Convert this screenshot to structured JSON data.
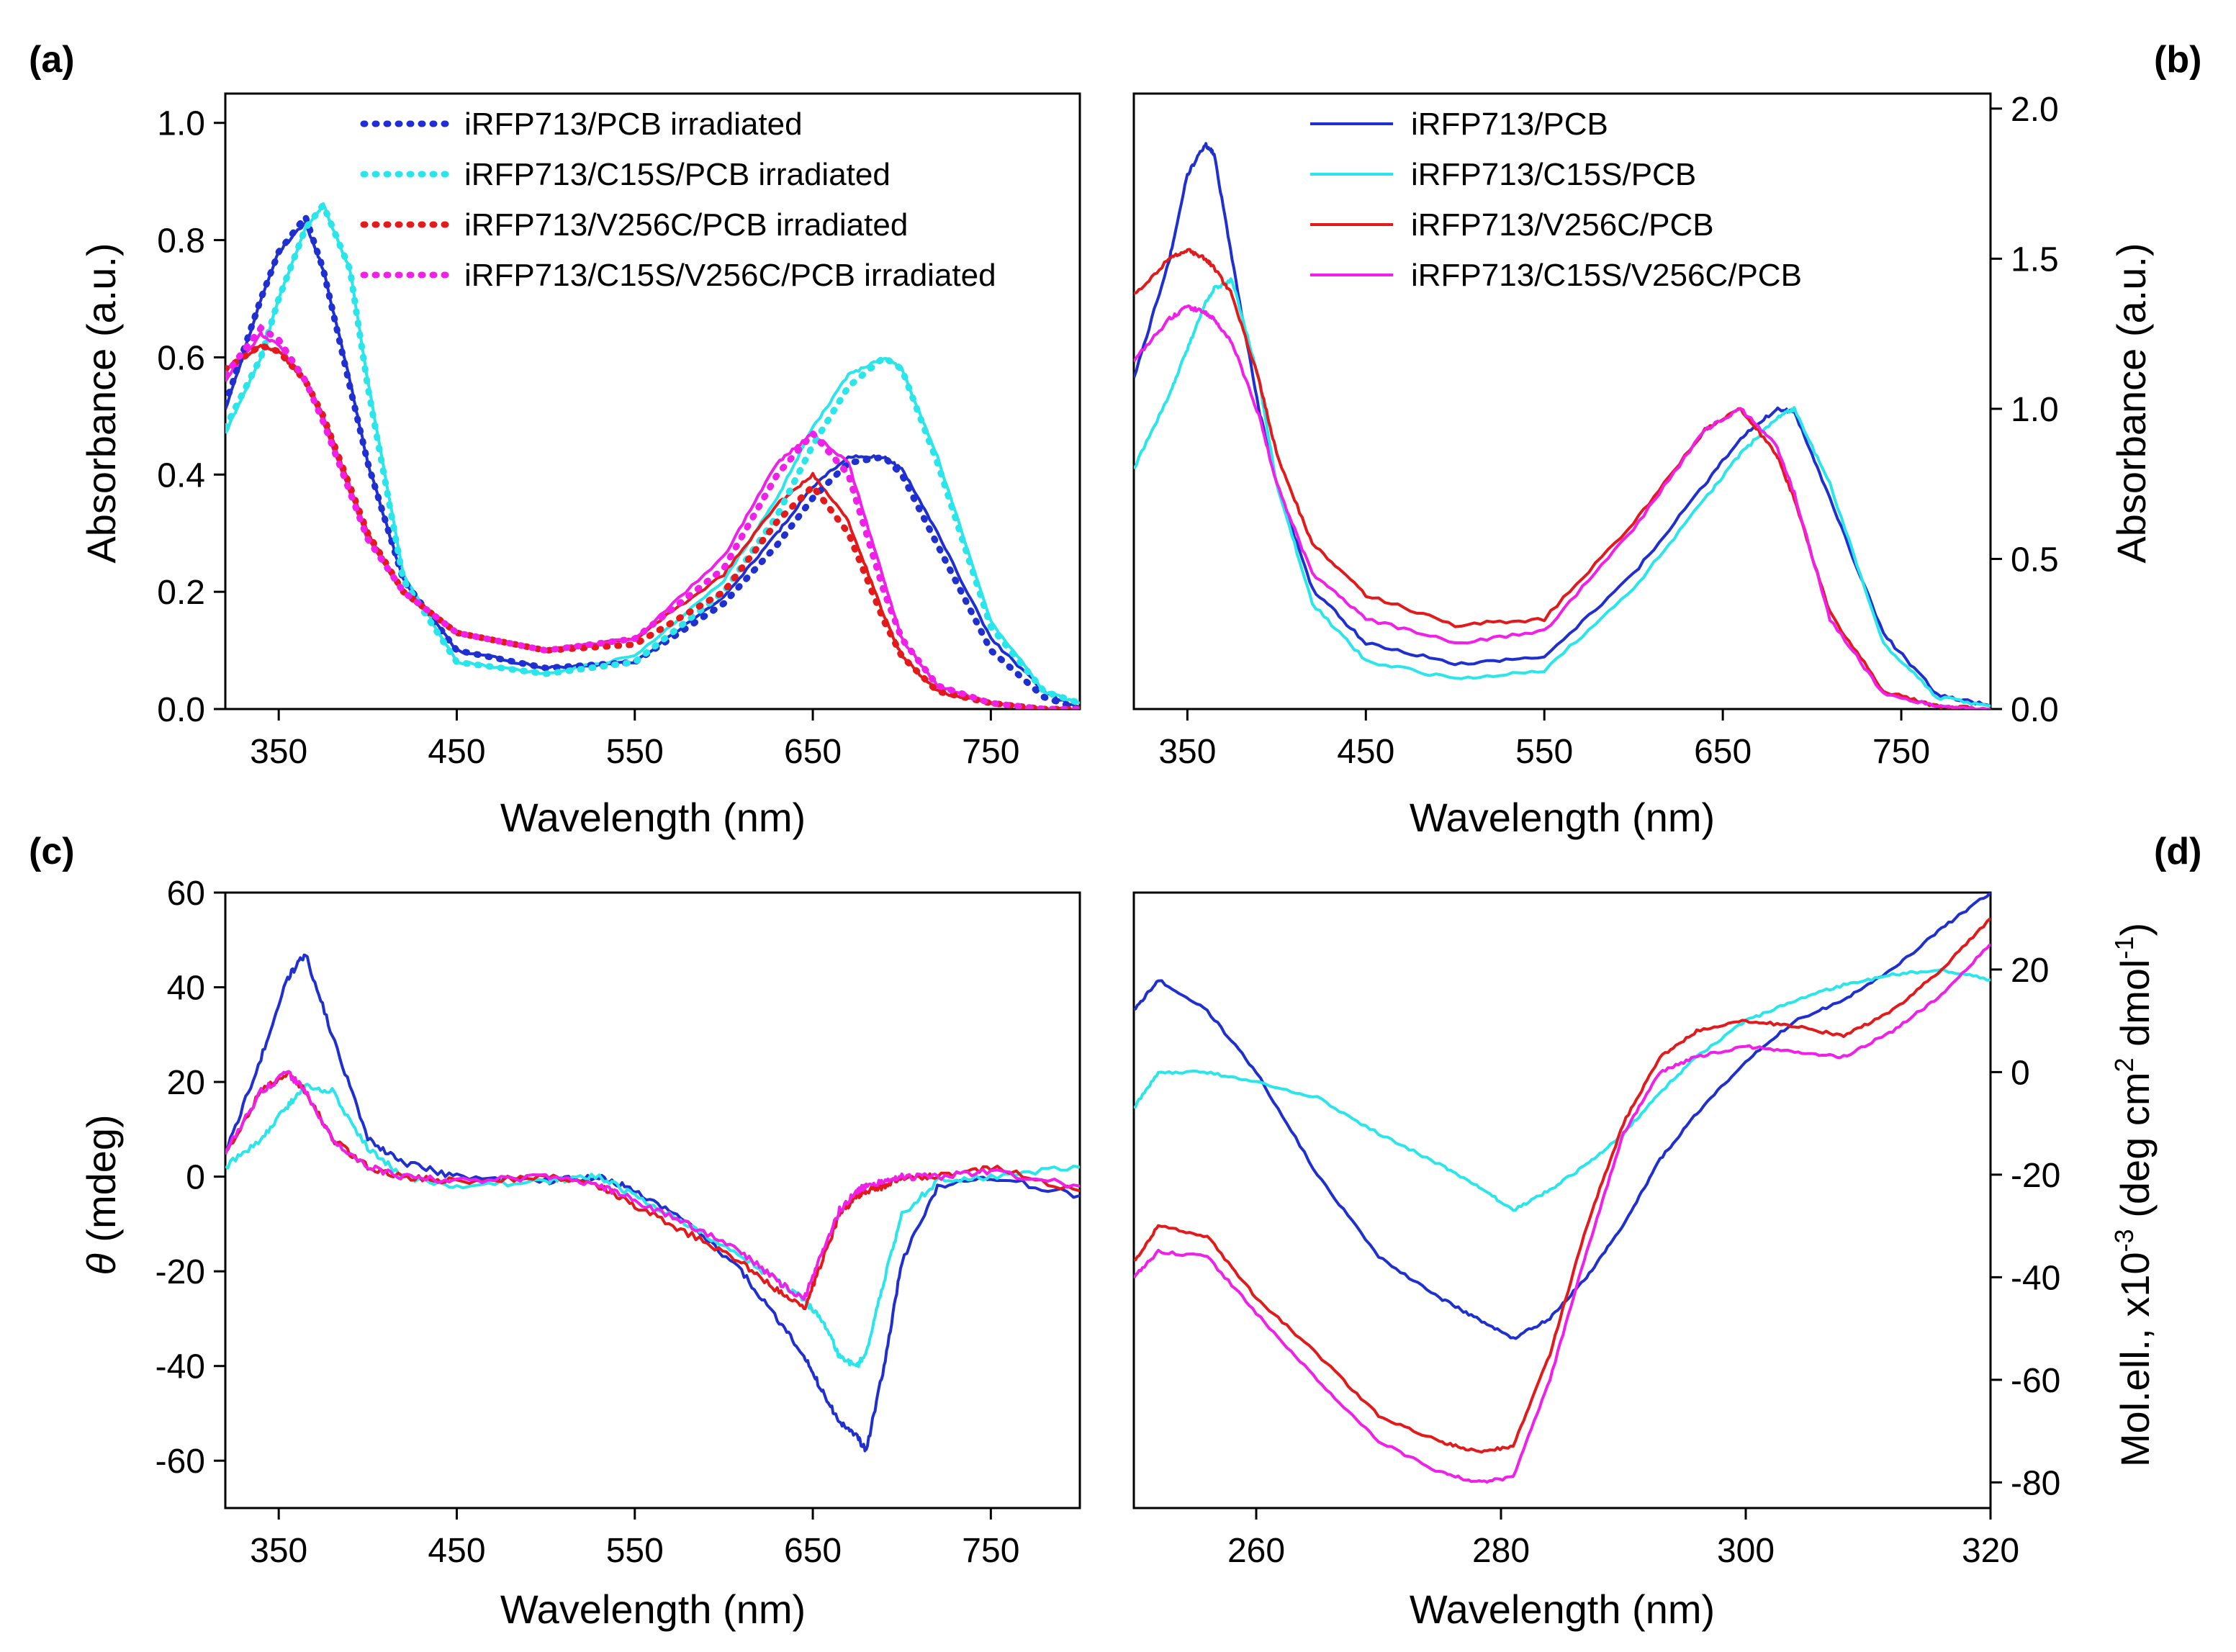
{
  "figure": {
    "panels": [
      {
        "id": "a",
        "panel_label": "(a)",
        "x_ticks": [
          "350",
          "450",
          "550",
          "650",
          "750"
        ],
        "y_ticks": [
          "0.0",
          "0.2",
          "0.4",
          "0.6",
          "0.8",
          "1.0"
        ],
        "xlabel": "Wavelength (nm)",
        "ylabel": "Absorbance (a.u.)"
      },
      {
        "id": "b",
        "panel_label": "(b)",
        "x_ticks": [
          "350",
          "450",
          "550",
          "650",
          "750"
        ],
        "y_ticks": [
          "0.0",
          "0.5",
          "1.0",
          "1.5",
          "2.0"
        ],
        "xlabel": "Wavelength (nm)",
        "ylabel": "Absorbance (a.u.)"
      },
      {
        "id": "c",
        "panel_label": "(c)",
        "x_ticks": [
          "350",
          "450",
          "550",
          "650",
          "750"
        ],
        "y_ticks": [
          "-60",
          "-40",
          "-20",
          "0",
          "20",
          "40",
          "60"
        ],
        "xlabel": "Wavelength (nm)",
        "ylabel_symbol": "θ",
        "ylabel_rest": " (mdeg)"
      },
      {
        "id": "d",
        "panel_label": "(d)",
        "x_ticks": [
          "260",
          "280",
          "300",
          "320"
        ],
        "y_ticks": [
          "-80",
          "-60",
          "-40",
          "-20",
          "0",
          "20"
        ],
        "xlabel": "Wavelength (nm)",
        "ylabel_base": "Mol.ell., x10",
        "ylabel_exp1": "-3",
        "ylabel_mid": " (deg cm",
        "ylabel_exp2": "2",
        "ylabel_mid2": " dmol",
        "ylabel_exp3": "-1",
        "ylabel_end": ")"
      }
    ]
  },
  "chart_data": [
    {
      "panel": "a",
      "type": "line",
      "xlabel": "Wavelength (nm)",
      "ylabel": "Absorbance (a.u.)",
      "xlim": [
        320,
        800
      ],
      "ylim": [
        0,
        1.05
      ],
      "x": [
        320,
        340,
        350,
        365,
        375,
        390,
        400,
        420,
        450,
        500,
        550,
        600,
        630,
        650,
        670,
        690,
        700,
        720,
        750,
        780,
        800
      ],
      "series": [
        {
          "name": "iRFP713/PCB irradiated",
          "color": "#1f2fd0",
          "dashed": true,
          "values": [
            0.52,
            0.7,
            0.78,
            0.84,
            0.75,
            0.55,
            0.42,
            0.22,
            0.1,
            0.07,
            0.08,
            0.18,
            0.28,
            0.36,
            0.42,
            0.43,
            0.4,
            0.28,
            0.1,
            0.02,
            0.0
          ]
        },
        {
          "name": "iRFP713/C15S/PCB irradiated",
          "color": "#2ae6ea",
          "dashed": true,
          "values": [
            0.48,
            0.6,
            0.7,
            0.82,
            0.86,
            0.75,
            0.55,
            0.22,
            0.08,
            0.06,
            0.08,
            0.2,
            0.33,
            0.45,
            0.55,
            0.6,
            0.58,
            0.42,
            0.14,
            0.03,
            0.01
          ]
        },
        {
          "name": "iRFP713/V256C/PCB irradiated",
          "color": "#e31a1c",
          "dashed": true,
          "values": [
            0.58,
            0.62,
            0.61,
            0.56,
            0.5,
            0.38,
            0.3,
            0.2,
            0.13,
            0.1,
            0.11,
            0.2,
            0.32,
            0.38,
            0.3,
            0.15,
            0.09,
            0.03,
            0.01,
            0.0,
            0.0
          ]
        },
        {
          "name": "iRFP713/C15S/V256C/PCB irradiated",
          "color": "#f020e8",
          "dashed": true,
          "values": [
            0.57,
            0.65,
            0.63,
            0.56,
            0.49,
            0.37,
            0.29,
            0.2,
            0.13,
            0.1,
            0.12,
            0.24,
            0.4,
            0.47,
            0.4,
            0.2,
            0.12,
            0.04,
            0.01,
            0.0,
            0.0
          ]
        }
      ],
      "solid_series": [
        {
          "name": "iRFP713/PCB",
          "color": "#1f2fd0",
          "values": [
            0.51,
            0.7,
            0.78,
            0.83,
            0.75,
            0.56,
            0.42,
            0.22,
            0.1,
            0.07,
            0.08,
            0.19,
            0.3,
            0.38,
            0.43,
            0.43,
            0.41,
            0.3,
            0.12,
            0.03,
            0.0
          ]
        },
        {
          "name": "iRFP713/C15S/PCB",
          "color": "#2ae6ea",
          "values": [
            0.47,
            0.6,
            0.7,
            0.82,
            0.86,
            0.75,
            0.56,
            0.23,
            0.08,
            0.06,
            0.09,
            0.22,
            0.36,
            0.48,
            0.57,
            0.6,
            0.58,
            0.43,
            0.15,
            0.03,
            0.01
          ]
        },
        {
          "name": "iRFP713/V256C/PCB",
          "color": "#e31a1c",
          "values": [
            0.58,
            0.62,
            0.61,
            0.56,
            0.5,
            0.38,
            0.3,
            0.2,
            0.13,
            0.1,
            0.12,
            0.23,
            0.35,
            0.4,
            0.32,
            0.16,
            0.09,
            0.03,
            0.01,
            0.0,
            0.0
          ]
        },
        {
          "name": "iRFP713/C15S/V256C/PCB",
          "color": "#f020e8",
          "values": [
            0.56,
            0.64,
            0.62,
            0.56,
            0.49,
            0.37,
            0.29,
            0.2,
            0.13,
            0.1,
            0.12,
            0.26,
            0.42,
            0.47,
            0.42,
            0.22,
            0.12,
            0.04,
            0.01,
            0.0,
            0.0
          ]
        }
      ],
      "legend": "top-center"
    },
    {
      "panel": "b",
      "type": "line",
      "xlabel": "Wavelength (nm)",
      "ylabel": "Absorbance (a.u.)",
      "xlim": [
        320,
        800
      ],
      "ylim": [
        0,
        2.05
      ],
      "x": [
        320,
        340,
        350,
        360,
        365,
        375,
        390,
        400,
        420,
        450,
        500,
        550,
        600,
        640,
        660,
        680,
        690,
        710,
        740,
        770,
        800
      ],
      "series": [
        {
          "name": "iRFP713/PCB",
          "color": "#1f2fd0",
          "values": [
            1.1,
            1.5,
            1.78,
            1.88,
            1.85,
            1.5,
            1.0,
            0.75,
            0.4,
            0.22,
            0.15,
            0.17,
            0.45,
            0.75,
            0.9,
            1.0,
            0.99,
            0.7,
            0.25,
            0.05,
            0.01
          ]
        },
        {
          "name": "iRFP713/C15S/PCB",
          "color": "#2ae6ea",
          "values": [
            0.8,
            1.05,
            1.2,
            1.35,
            1.4,
            1.43,
            1.1,
            0.75,
            0.35,
            0.16,
            0.1,
            0.13,
            0.4,
            0.7,
            0.85,
            0.97,
            1.0,
            0.75,
            0.22,
            0.04,
            0.01
          ]
        },
        {
          "name": "iRFP713/V256C/PCB",
          "color": "#e31a1c",
          "values": [
            1.38,
            1.5,
            1.53,
            1.5,
            1.47,
            1.38,
            1.1,
            0.85,
            0.55,
            0.38,
            0.28,
            0.3,
            0.62,
            0.93,
            1.0,
            0.85,
            0.7,
            0.32,
            0.06,
            0.01,
            0.0
          ]
        },
        {
          "name": "iRFP713/C15S/V256C/PCB",
          "color": "#f020e8",
          "values": [
            1.16,
            1.3,
            1.34,
            1.32,
            1.3,
            1.22,
            0.98,
            0.75,
            0.45,
            0.3,
            0.22,
            0.26,
            0.6,
            0.93,
            1.0,
            0.88,
            0.72,
            0.3,
            0.05,
            0.01,
            0.0
          ]
        }
      ],
      "legend": "top-center"
    },
    {
      "panel": "c",
      "type": "line",
      "xlabel": "Wavelength (nm)",
      "ylabel": "θ (mdeg)",
      "xlim": [
        320,
        800
      ],
      "ylim": [
        -70,
        60
      ],
      "x": [
        320,
        340,
        355,
        365,
        380,
        400,
        420,
        450,
        500,
        530,
        550,
        580,
        610,
        630,
        645,
        655,
        665,
        675,
        680,
        690,
        700,
        720,
        750,
        800
      ],
      "series": [
        {
          "name": "iRFP713/PCB",
          "color": "#1f2fd0",
          "values": [
            5,
            25,
            42,
            47,
            30,
            8,
            3,
            0,
            -1,
            0,
            -3,
            -10,
            -20,
            -30,
            -38,
            -45,
            -52,
            -55,
            -58,
            -40,
            -18,
            -2,
            0,
            -4
          ]
        },
        {
          "name": "iRFP713/C15S/PCB",
          "color": "#2ae6ea",
          "values": [
            2,
            8,
            15,
            19,
            18,
            6,
            0,
            -2,
            -1,
            0,
            -4,
            -10,
            -17,
            -22,
            -26,
            -30,
            -38,
            -40,
            -37,
            -22,
            -8,
            -1,
            0,
            2
          ]
        },
        {
          "name": "iRFP713/V256C/PCB",
          "color": "#e31a1c",
          "values": [
            5,
            18,
            22,
            18,
            8,
            2,
            0,
            -1,
            0,
            -2,
            -6,
            -12,
            -18,
            -24,
            -28,
            -18,
            -8,
            -4,
            -3,
            -2,
            0,
            0,
            2,
            -3
          ]
        },
        {
          "name": "iRFP713/C15S/V256C/PCB",
          "color": "#f020e8",
          "values": [
            5,
            18,
            22,
            18,
            8,
            2,
            0,
            -1,
            0,
            -2,
            -5,
            -10,
            -16,
            -22,
            -26,
            -16,
            -7,
            -3,
            -2,
            -1,
            0,
            0,
            1,
            -2
          ]
        }
      ]
    },
    {
      "panel": "d",
      "type": "line",
      "xlabel": "Wavelength (nm)",
      "ylabel": "Mol.ell., x10-3 (deg cm2 dmol-1)",
      "xlim": [
        250,
        320
      ],
      "ylim": [
        -85,
        35
      ],
      "x": [
        250,
        252,
        256,
        260,
        265,
        270,
        275,
        278,
        281,
        284,
        287,
        290,
        293,
        296,
        300,
        304,
        308,
        312,
        316,
        320
      ],
      "series": [
        {
          "name": "iRFP713/PCB",
          "color": "#1f2fd0",
          "values": [
            12,
            18,
            12,
            0,
            -20,
            -36,
            -44,
            -48,
            -52,
            -48,
            -40,
            -30,
            -17,
            -8,
            2,
            10,
            14,
            20,
            28,
            35
          ]
        },
        {
          "name": "iRFP713/C15S/PCB",
          "color": "#2ae6ea",
          "values": [
            -7,
            0,
            0,
            -2,
            -5,
            -12,
            -18,
            -22,
            -27,
            -23,
            -18,
            -12,
            -4,
            3,
            10,
            14,
            17,
            19,
            20,
            18
          ]
        },
        {
          "name": "iRFP713/V256C/PCB",
          "color": "#e31a1c",
          "values": [
            -37,
            -30,
            -32,
            -44,
            -55,
            -67,
            -72,
            -74,
            -73,
            -55,
            -30,
            -10,
            3,
            8,
            10,
            9,
            7,
            12,
            20,
            30
          ]
        },
        {
          "name": "iRFP713/C15S/V256C/PCB",
          "color": "#f020e8",
          "values": [
            -40,
            -35,
            -36,
            -47,
            -60,
            -72,
            -78,
            -80,
            -79,
            -60,
            -35,
            -12,
            0,
            3,
            5,
            4,
            3,
            8,
            15,
            25
          ]
        }
      ]
    }
  ]
}
